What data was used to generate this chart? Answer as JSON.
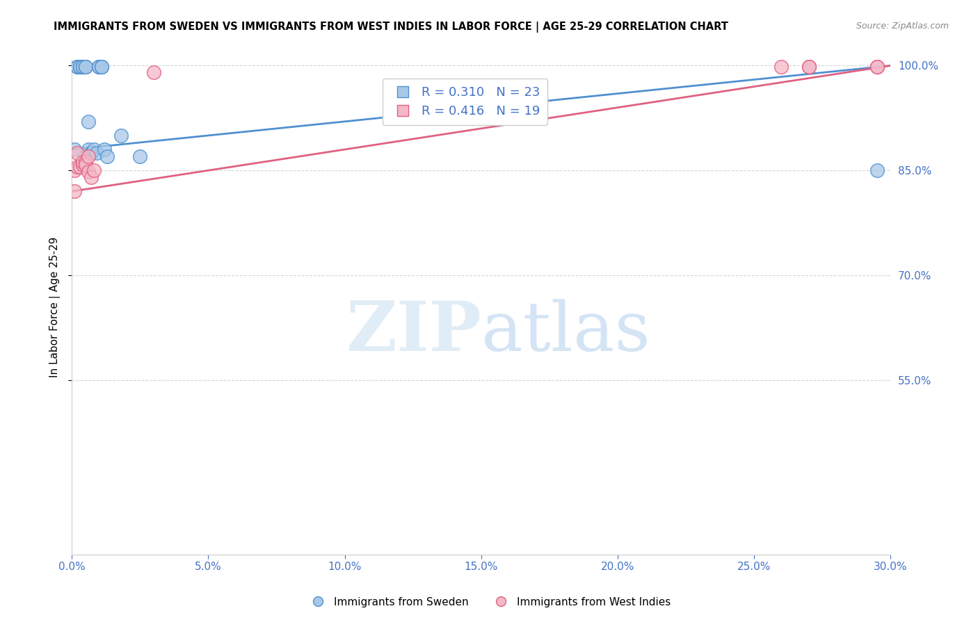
{
  "title": "IMMIGRANTS FROM SWEDEN VS IMMIGRANTS FROM WEST INDIES IN LABOR FORCE | AGE 25-29 CORRELATION CHART",
  "source": "Source: ZipAtlas.com",
  "xlabel": "",
  "ylabel": "In Labor Force | Age 25-29",
  "xlim": [
    0.0,
    0.3
  ],
  "ylim": [
    0.3,
    1.008
  ],
  "yticks": [
    0.55,
    0.7,
    0.85,
    1.0
  ],
  "xticks": [
    0.0,
    0.05,
    0.1,
    0.15,
    0.2,
    0.25,
    0.3
  ],
  "sweden_color": "#a8c8e8",
  "west_indies_color": "#f4b8c8",
  "sweden_line_color": "#5090d0",
  "west_indies_line_color": "#e06080",
  "R_sweden": 0.31,
  "N_sweden": 23,
  "R_west_indies": 0.416,
  "N_west_indies": 19,
  "sweden_x": [
    0.001,
    0.002,
    0.002,
    0.003,
    0.003,
    0.004,
    0.004,
    0.005,
    0.005,
    0.006,
    0.006,
    0.007,
    0.008,
    0.009,
    0.01,
    0.01,
    0.011,
    0.011,
    0.012,
    0.013,
    0.018,
    0.025,
    0.295
  ],
  "sweden_y": [
    0.88,
    0.998,
    0.998,
    0.998,
    0.998,
    0.998,
    0.998,
    0.998,
    0.998,
    0.88,
    0.92,
    0.875,
    0.88,
    0.875,
    0.998,
    0.998,
    0.998,
    0.998,
    0.88,
    0.87,
    0.9,
    0.87,
    0.85
  ],
  "west_indies_x": [
    0.001,
    0.001,
    0.002,
    0.002,
    0.003,
    0.004,
    0.004,
    0.005,
    0.005,
    0.006,
    0.006,
    0.007,
    0.008,
    0.03,
    0.26,
    0.27,
    0.27,
    0.295,
    0.295
  ],
  "west_indies_y": [
    0.85,
    0.82,
    0.875,
    0.855,
    0.855,
    0.858,
    0.862,
    0.862,
    0.858,
    0.848,
    0.87,
    0.84,
    0.85,
    0.99,
    0.998,
    0.998,
    0.998,
    0.998,
    0.998
  ],
  "background_color": "#ffffff",
  "grid_color": "#cccccc",
  "axis_color": "#4472c4",
  "title_color": "#000000",
  "watermark_zip": "ZIP",
  "watermark_atlas": "atlas",
  "sweden_trendline_x": [
    0.0,
    0.3
  ],
  "sweden_trendline_y": [
    0.88,
    1.0
  ],
  "west_indies_trendline_x": [
    0.0,
    0.3
  ],
  "west_indies_trendline_y": [
    0.82,
    1.0
  ]
}
